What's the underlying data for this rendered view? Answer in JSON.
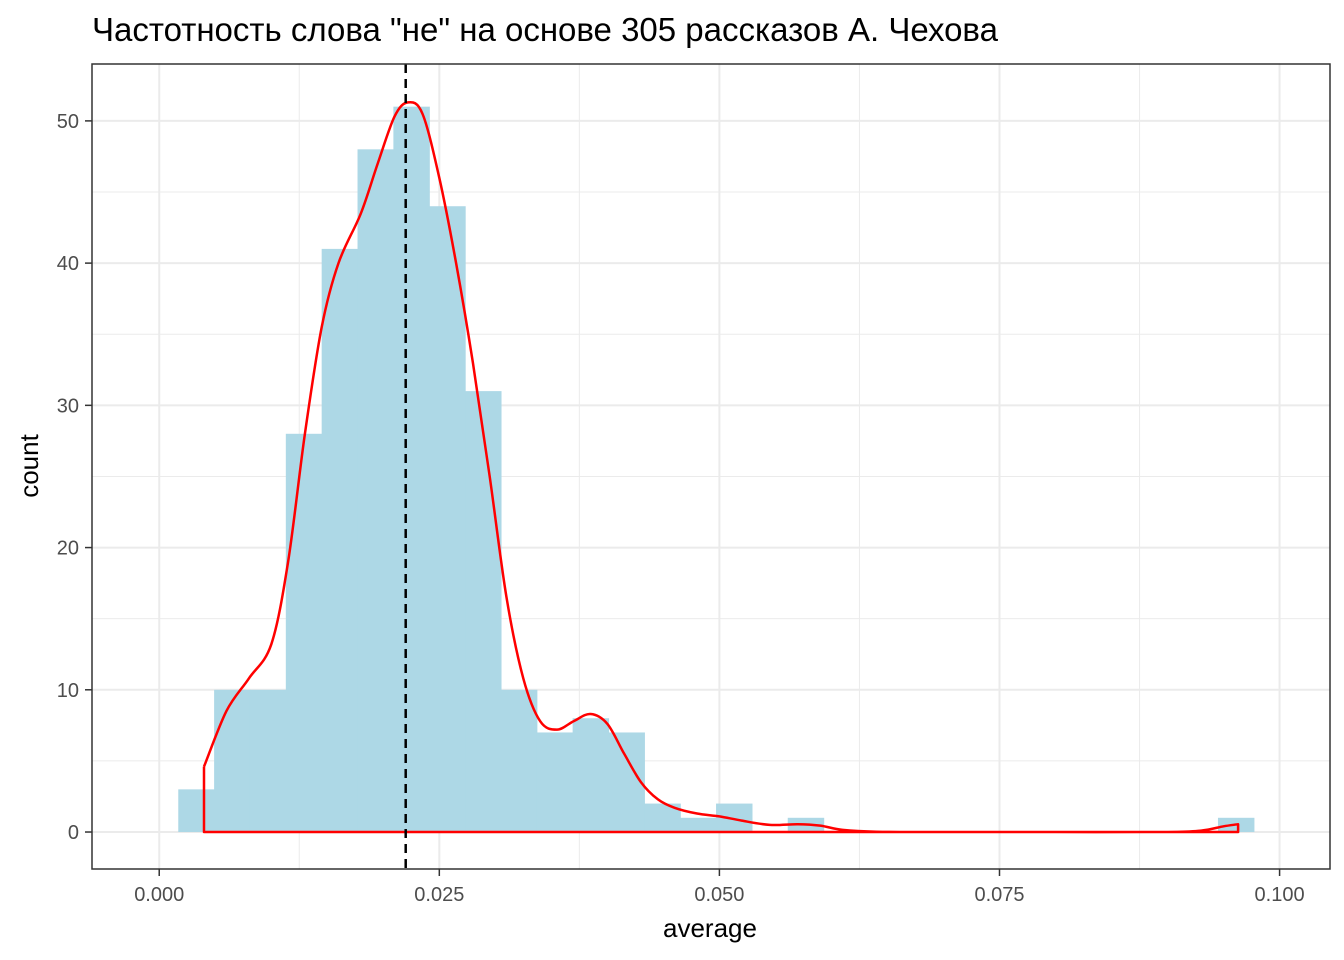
{
  "chart_data": {
    "type": "histogram",
    "title": "Частотность слова \"не\" на основе 305 рассказов А. Чехова",
    "xlabel": "average",
    "ylabel": "count",
    "xlim": [
      -0.006,
      0.1045
    ],
    "ylim": [
      -2.6,
      54.0
    ],
    "x_ticks": [
      0.0,
      0.025,
      0.05,
      0.075,
      0.1
    ],
    "x_tick_labels": [
      "0.000",
      "0.025",
      "0.050",
      "0.075",
      "0.100"
    ],
    "y_ticks": [
      0,
      10,
      20,
      30,
      40,
      50
    ],
    "y_tick_labels": [
      "0",
      "10",
      "20",
      "30",
      "40",
      "50"
    ],
    "bin_width": 0.0032,
    "bins": [
      {
        "x0": 0.0017,
        "count": 3
      },
      {
        "x0": 0.0049,
        "count": 10
      },
      {
        "x0": 0.0081,
        "count": 10
      },
      {
        "x0": 0.0113,
        "count": 28
      },
      {
        "x0": 0.0145,
        "count": 41
      },
      {
        "x0": 0.0177,
        "count": 48
      },
      {
        "x0": 0.0209,
        "count": 51
      },
      {
        "x0": 0.0241,
        "count": 44
      },
      {
        "x0": 0.0273,
        "count": 31
      },
      {
        "x0": 0.0305,
        "count": 10
      },
      {
        "x0": 0.0337,
        "count": 7
      },
      {
        "x0": 0.0369,
        "count": 8
      },
      {
        "x0": 0.0401,
        "count": 7
      },
      {
        "x0": 0.0433,
        "count": 2
      },
      {
        "x0": 0.0465,
        "count": 1
      },
      {
        "x0": 0.0497,
        "count": 2
      },
      {
        "x0": 0.0529,
        "count": 0
      },
      {
        "x0": 0.0561,
        "count": 1
      },
      {
        "x0": 0.0593,
        "count": 0
      },
      {
        "x0": 0.0945,
        "count": 1
      }
    ],
    "density_curve": {
      "color": "#ff0000",
      "points": [
        [
          0.004,
          4.6
        ],
        [
          0.006,
          8.5
        ],
        [
          0.008,
          10.8
        ],
        [
          0.01,
          13.2
        ],
        [
          0.0115,
          19.0
        ],
        [
          0.013,
          28.0
        ],
        [
          0.0145,
          35.5
        ],
        [
          0.016,
          40.0
        ],
        [
          0.018,
          43.5
        ],
        [
          0.0195,
          47.0
        ],
        [
          0.021,
          50.3
        ],
        [
          0.0222,
          51.3
        ],
        [
          0.0235,
          50.5
        ],
        [
          0.025,
          46.0
        ],
        [
          0.0265,
          40.0
        ],
        [
          0.028,
          33.0
        ],
        [
          0.0295,
          25.0
        ],
        [
          0.031,
          16.5
        ],
        [
          0.0325,
          10.8
        ],
        [
          0.034,
          7.8
        ],
        [
          0.0355,
          7.2
        ],
        [
          0.037,
          7.8
        ],
        [
          0.0385,
          8.3
        ],
        [
          0.04,
          7.6
        ],
        [
          0.0415,
          5.5
        ],
        [
          0.043,
          3.5
        ],
        [
          0.0445,
          2.3
        ],
        [
          0.046,
          1.7
        ],
        [
          0.048,
          1.3
        ],
        [
          0.05,
          1.1
        ],
        [
          0.052,
          0.8
        ],
        [
          0.0545,
          0.5
        ],
        [
          0.057,
          0.55
        ],
        [
          0.059,
          0.45
        ],
        [
          0.061,
          0.15
        ],
        [
          0.064,
          0.02
        ],
        [
          0.07,
          0.0
        ],
        [
          0.08,
          0.0
        ],
        [
          0.09,
          0.0
        ],
        [
          0.093,
          0.1
        ],
        [
          0.095,
          0.4
        ],
        [
          0.0963,
          0.55
        ],
        [
          0.0963,
          0.0
        ],
        [
          0.004,
          0.0
        ],
        [
          0.004,
          4.6
        ]
      ]
    },
    "mean_line": {
      "x": 0.022,
      "style": "dashed",
      "color": "#000000"
    },
    "grid": true,
    "colors": {
      "bar": "#add8e6",
      "density": "#ff0000",
      "grid": "#ebebeb",
      "panel_border": "#333333"
    }
  }
}
